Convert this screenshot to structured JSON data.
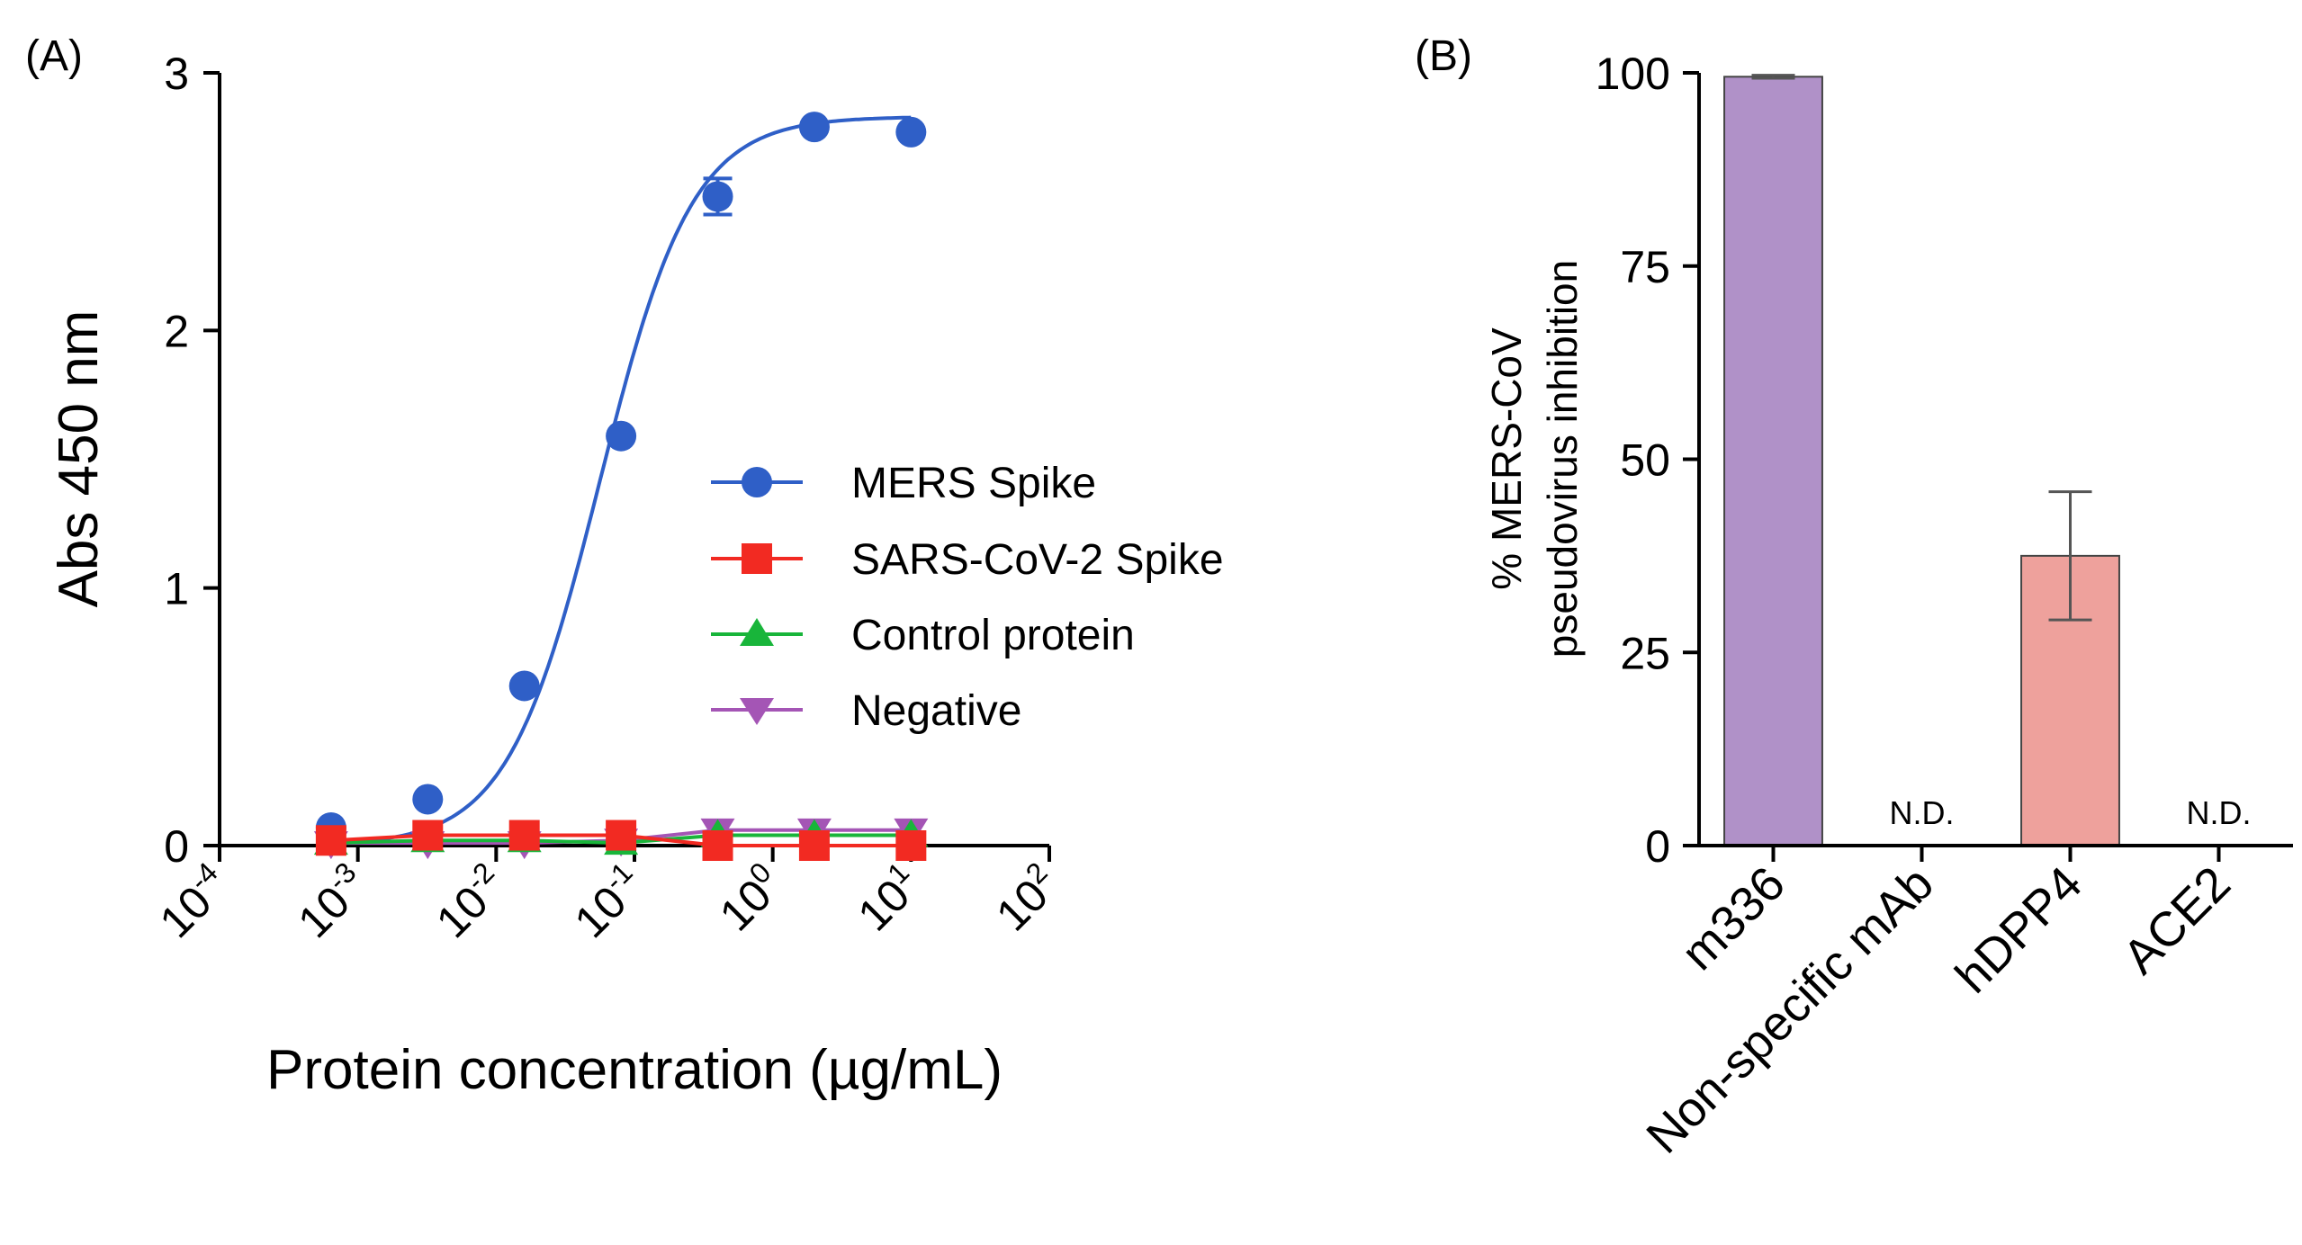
{
  "chart_data": [
    {
      "panel": "(A)",
      "type": "scatter",
      "xscale": "log",
      "xlabel": "Protein concentration (µg/mL)",
      "ylabel": "Abs 450 nm",
      "xlim": [
        0.0001,
        100
      ],
      "ylim": [
        0,
        3
      ],
      "x_ticks": [
        {
          "base": "10",
          "exp": "-4",
          "value": 0.0001
        },
        {
          "base": "10",
          "exp": "-3",
          "value": 0.001
        },
        {
          "base": "10",
          "exp": "-2",
          "value": 0.01
        },
        {
          "base": "10",
          "exp": "-1",
          "value": 0.1
        },
        {
          "base": "10",
          "exp": "0",
          "value": 1
        },
        {
          "base": "10",
          "exp": "1",
          "value": 10
        },
        {
          "base": "10",
          "exp": "2",
          "value": 100
        }
      ],
      "y_ticks": [
        "0",
        "1",
        "2",
        "3"
      ],
      "legend_position": "center-right",
      "fit_curve": {
        "series": "MERS Spike",
        "bottom": 0.0,
        "top": 2.83,
        "log_ec50": -1.25,
        "hill": 1.3
      },
      "series": [
        {
          "name": "MERS Spike",
          "color": "#2f5fc7",
          "marker": "circle",
          "x": [
            0.00064,
            0.0032,
            0.016,
            0.08,
            0.4,
            2,
            10
          ],
          "y": [
            0.07,
            0.18,
            0.62,
            1.59,
            2.52,
            2.79,
            2.77
          ],
          "err": [
            0,
            0,
            0,
            0,
            0.07,
            0,
            0
          ]
        },
        {
          "name": "SARS-CoV-2 Spike",
          "color": "#f22a22",
          "marker": "square",
          "x": [
            0.00064,
            0.0032,
            0.016,
            0.08,
            0.4,
            2,
            10
          ],
          "y": [
            0.02,
            0.04,
            0.04,
            0.04,
            0.0,
            0.0,
            0.0
          ]
        },
        {
          "name": "Control protein",
          "color": "#18b53a",
          "marker": "triangle-up",
          "x": [
            0.00064,
            0.0032,
            0.016,
            0.08,
            0.4,
            2,
            10
          ],
          "y": [
            0.01,
            0.02,
            0.02,
            0.01,
            0.04,
            0.04,
            0.04
          ]
        },
        {
          "name": "Negative",
          "color": "#a455b5",
          "marker": "triangle-down",
          "x": [
            0.00064,
            0.0032,
            0.016,
            0.08,
            0.4,
            2,
            10
          ],
          "y": [
            0.01,
            0.01,
            0.01,
            0.02,
            0.06,
            0.06,
            0.06
          ]
        }
      ]
    },
    {
      "panel": "(B)",
      "type": "bar",
      "ylabel_line1": "% MERS-CoV",
      "ylabel_line2": "pseudovirus inhibition",
      "ylim": [
        0,
        100
      ],
      "y_ticks": [
        "0",
        "25",
        "50",
        "75",
        "100"
      ],
      "categories": [
        "m336",
        "Non-specific mAb",
        "hDPP4",
        "ACE2"
      ],
      "values": [
        99.5,
        null,
        37.5,
        null
      ],
      "errors": [
        0.2,
        null,
        8.3,
        null
      ],
      "value_labels": [
        "",
        "N.D.",
        "",
        "N.D."
      ],
      "colors": [
        "#b091c8",
        "",
        "#eea19c",
        ""
      ]
    }
  ]
}
